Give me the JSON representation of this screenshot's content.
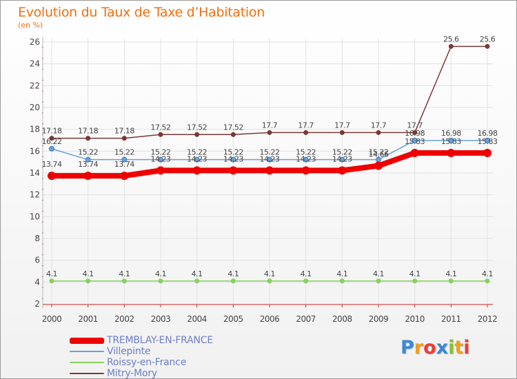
{
  "chart_data": {
    "type": "line",
    "title": "Evolution du Taux de Taxe d’Habitation",
    "subtitle": "(en %)",
    "x": [
      "2000",
      "2001",
      "2002",
      "2003",
      "2004",
      "2005",
      "2006",
      "2007",
      "2008",
      "2009",
      "2010",
      "2011",
      "2012"
    ],
    "ylim": [
      2,
      26
    ],
    "yticks": [
      2,
      4,
      6,
      8,
      10,
      12,
      14,
      16,
      18,
      20,
      22,
      24,
      26
    ],
    "grid": true,
    "legend_position": "bottom-left",
    "series": [
      {
        "name": "TREMBLAY-EN-FRANCE",
        "color": "#ee0000",
        "values": [
          13.74,
          13.74,
          13.74,
          14.23,
          14.23,
          14.23,
          14.23,
          14.23,
          14.23,
          14.66,
          15.83,
          15.83,
          15.83
        ],
        "labels": [
          "13.74",
          "13.74",
          "13.74",
          "14.23",
          "14.23",
          "14.23",
          "14.23",
          "14.23",
          "14.23",
          "14.66",
          "15.83",
          "15.83",
          "15.83"
        ]
      },
      {
        "name": "Villepinte",
        "color": "#6aa0d8",
        "values": [
          16.22,
          15.22,
          15.22,
          15.22,
          15.22,
          15.22,
          15.22,
          15.22,
          15.22,
          15.22,
          16.98,
          16.98,
          16.98
        ],
        "labels": [
          "16.22",
          "15.22",
          "15.22",
          "15.22",
          "15.22",
          "15.22",
          "15.22",
          "15.22",
          "15.22",
          "15.22",
          "16.98",
          "16.98",
          "16.98"
        ]
      },
      {
        "name": "Roissy-en-France",
        "color": "#88d060",
        "values": [
          4.1,
          4.1,
          4.1,
          4.1,
          4.1,
          4.1,
          4.1,
          4.1,
          4.1,
          4.1,
          4.1,
          4.1,
          4.1
        ],
        "labels": [
          "4.1",
          "4.1",
          "4.1",
          "4.1",
          "4.1",
          "4.1",
          "4.1",
          "4.1",
          "4.1",
          "4.1",
          "4.1",
          "4.1",
          "4.1"
        ]
      },
      {
        "name": "Mitry-Mory",
        "color": "#7a3838",
        "values": [
          17.18,
          17.18,
          17.18,
          17.52,
          17.52,
          17.52,
          17.7,
          17.7,
          17.7,
          17.7,
          17.7,
          25.6,
          25.6
        ],
        "labels": [
          "17.18",
          "17.18",
          "17.18",
          "17.52",
          "17.52",
          "17.52",
          "17.7",
          "17.7",
          "17.7",
          "17.7",
          "17.7",
          "25.6",
          "25.6"
        ]
      }
    ]
  },
  "logo": {
    "letters": [
      "P",
      "r",
      "o",
      "x",
      "i",
      "t",
      "i"
    ]
  }
}
